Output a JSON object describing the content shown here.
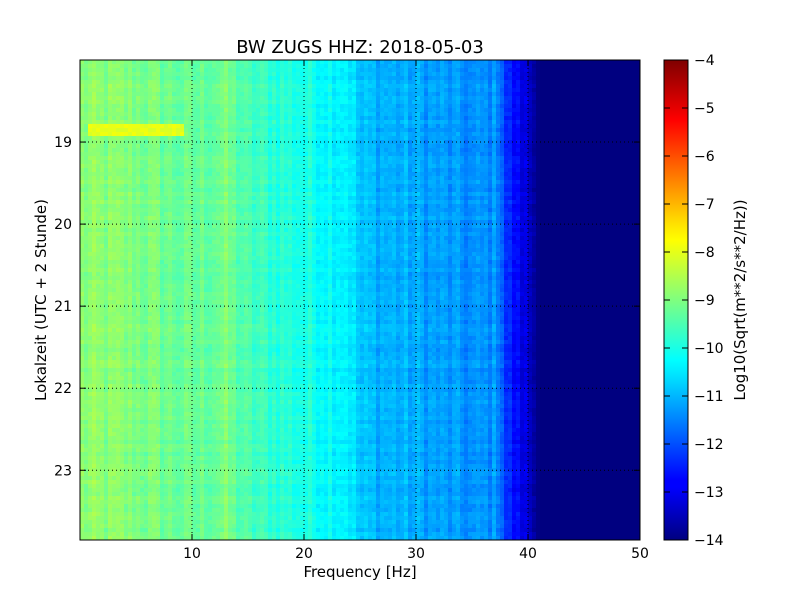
{
  "chart_data": {
    "type": "heatmap",
    "title": "BW ZUGS HHZ: 2018-05-03",
    "xlabel": "Frequency [Hz]",
    "ylabel": "Lokalzeit (UTC + 2 Stunde)",
    "xlim": [
      0,
      50
    ],
    "ylim": [
      23.85,
      18.0
    ],
    "xticks": [
      10,
      20,
      30,
      40,
      50
    ],
    "yticks": [
      19,
      20,
      21,
      22,
      23
    ],
    "grid": true,
    "colormap": "jet",
    "colorbar": {
      "label": "Log10(Sqrt(m**2/s**2/Hz))",
      "range": [
        -14,
        -4
      ],
      "ticks": [
        -14,
        -13,
        -12,
        -11,
        -10,
        -9,
        -8,
        -7,
        -6,
        -5,
        -4
      ]
    },
    "frequency_profile": [
      {
        "f": 0,
        "v": -8.9
      },
      {
        "f": 5,
        "v": -9.0
      },
      {
        "f": 10,
        "v": -9.3
      },
      {
        "f": 13,
        "v": -9.1
      },
      {
        "f": 15,
        "v": -9.6
      },
      {
        "f": 20,
        "v": -10.0
      },
      {
        "f": 24,
        "v": -10.3
      },
      {
        "f": 25,
        "v": -10.9
      },
      {
        "f": 30,
        "v": -11.1
      },
      {
        "f": 35,
        "v": -11.4
      },
      {
        "f": 37.5,
        "v": -11.3
      },
      {
        "f": 38,
        "v": -12.3
      },
      {
        "f": 40,
        "v": -13.2
      },
      {
        "f": 41,
        "v": -14.0
      },
      {
        "f": 50,
        "v": -14.0
      }
    ],
    "annotations": [
      {
        "time": 18.83,
        "f_range": [
          0.5,
          9
        ],
        "v": -8.0
      }
    ]
  }
}
